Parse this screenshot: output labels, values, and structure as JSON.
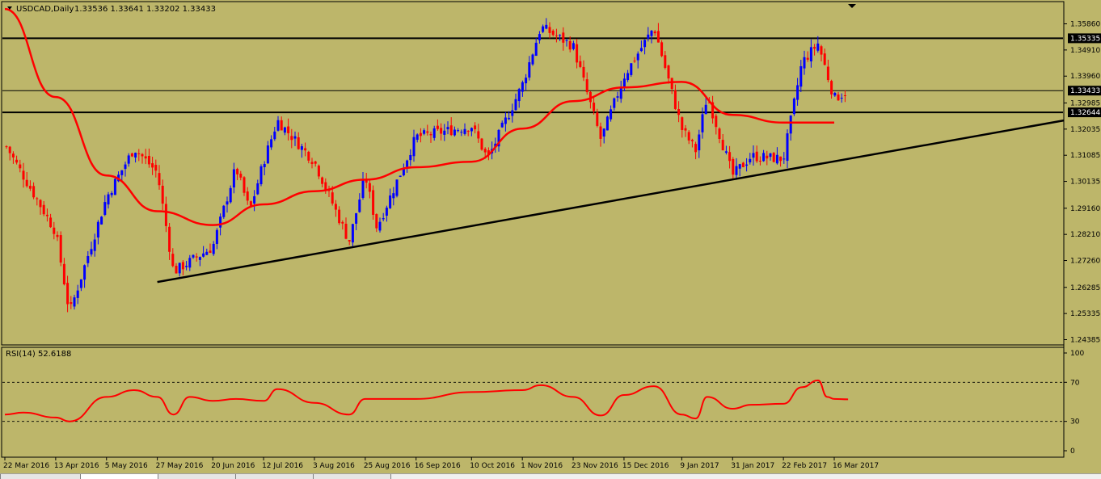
{
  "header": {
    "symbol": "USDCAD,Daily",
    "ohlc": "1.33536 1.33641 1.33202 1.33433"
  },
  "rsi_header": "RSI(14) 52.6188",
  "colors": {
    "background": "#bdb66a",
    "bull_candle": "#0000ff",
    "bear_candle": "#ff0000",
    "ma_line": "#ff0000",
    "rsi_line": "#ff0000",
    "trendline": "#000000",
    "price_tag_bg": "#000000",
    "price_tag_text": "#ffffff"
  },
  "chart_data": [
    {
      "type": "candlestick",
      "symbol": "USDCAD",
      "timeframe": "Daily",
      "y_ticks": [
        "1.35860",
        "1.34910",
        "1.33960",
        "1.32985",
        "1.32035",
        "1.31085",
        "1.30135",
        "1.29160",
        "1.28210",
        "1.27260",
        "1.26285",
        "1.25335",
        "1.24385"
      ],
      "ylim": [
        1.2438,
        1.3613
      ],
      "x_ticks": [
        "22 Mar 2016",
        "13 Apr 2016",
        "5 May 2016",
        "27 May 2016",
        "20 Jun 2016",
        "12 Jul 2016",
        "3 Aug 2016",
        "25 Aug 2016",
        "16 Sep 2016",
        "10 Oct 2016",
        "1 Nov 2016",
        "23 Nov 2016",
        "15 Dec 2016",
        "9 Jan 2017",
        "31 Jan 2017",
        "22 Feb 2017",
        "16 Mar 2017"
      ],
      "price_labels": [
        {
          "text": "1.35335",
          "price": 1.35335
        },
        {
          "text": "1.33433",
          "price": 1.33433
        },
        {
          "text": "1.32644",
          "price": 1.32644
        }
      ],
      "horizontal_lines": [
        1.35335,
        1.33433,
        1.32644
      ],
      "trendline": {
        "from": {
          "date": "27 May 2016",
          "price": 1.2648
        },
        "to": {
          "date": "right edge",
          "price": 1.3235
        }
      },
      "moving_average_path": [
        {
          "date": "22 Mar 2016",
          "price": 1.364
        },
        {
          "date": "13 Apr 2016",
          "price": 1.332
        },
        {
          "date": "5 May 2016",
          "price": 1.3035
        },
        {
          "date": "27 May 2016",
          "price": 1.2905
        },
        {
          "date": "20 Jun 2016",
          "price": 1.2855
        },
        {
          "date": "12 Jul 2016",
          "price": 1.293
        },
        {
          "date": "3 Aug 2016",
          "price": 1.2978
        },
        {
          "date": "25 Aug 2016",
          "price": 1.302
        },
        {
          "date": "16 Sep 2016",
          "price": 1.3065
        },
        {
          "date": "10 Oct 2016",
          "price": 1.3085
        },
        {
          "date": "1 Nov 2016",
          "price": 1.3205
        },
        {
          "date": "23 Nov 2016",
          "price": 1.3305
        },
        {
          "date": "15 Dec 2016",
          "price": 1.3355
        },
        {
          "date": "9 Jan 2017",
          "price": 1.3375
        },
        {
          "date": "31 Jan 2017",
          "price": 1.3255
        },
        {
          "date": "22 Feb 2017",
          "price": 1.3227
        },
        {
          "date": "16 Mar 2017",
          "price": 1.3227
        }
      ],
      "swing_path": [
        {
          "date": "22 Mar 2016",
          "price": 1.315
        },
        {
          "date": "13 Apr 2016",
          "price": 1.283
        },
        {
          "date": "19 Apr 2016",
          "price": 1.2535
        },
        {
          "date": "5 May 2016",
          "price": 1.2955
        },
        {
          "date": "17 May 2016",
          "price": 1.3135
        },
        {
          "date": "27 May 2016",
          "price": 1.3045
        },
        {
          "date": "3 Jun 2016",
          "price": 1.2685
        },
        {
          "date": "20 Jun 2016",
          "price": 1.2775
        },
        {
          "date": "30 Jun 2016",
          "price": 1.3065
        },
        {
          "date": "6 Jul 2016",
          "price": 1.2905
        },
        {
          "date": "12 Jul 2016",
          "price": 1.3085
        },
        {
          "date": "18 Jul 2016",
          "price": 1.3235
        },
        {
          "date": "3 Aug 2016",
          "price": 1.3085
        },
        {
          "date": "18 Aug 2016",
          "price": 1.2795
        },
        {
          "date": "25 Aug 2016",
          "price": 1.3035
        },
        {
          "date": "30 Aug 2016",
          "price": 1.2845
        },
        {
          "date": "16 Sep 2016",
          "price": 1.3175
        },
        {
          "date": "10 Oct 2016",
          "price": 1.3215
        },
        {
          "date": "17 Oct 2016",
          "price": 1.3095
        },
        {
          "date": "1 Nov 2016",
          "price": 1.3365
        },
        {
          "date": "9 Nov 2016",
          "price": 1.3575
        },
        {
          "date": "23 Nov 2016",
          "price": 1.3505
        },
        {
          "date": "5 Dec 2016",
          "price": 1.3165
        },
        {
          "date": "15 Dec 2016",
          "price": 1.3395
        },
        {
          "date": "28 Dec 2016",
          "price": 1.3575
        },
        {
          "date": "9 Jan 2017",
          "price": 1.3205
        },
        {
          "date": "15 Jan 2017",
          "price": 1.3125
        },
        {
          "date": "20 Jan 2017",
          "price": 1.3325
        },
        {
          "date": "31 Jan 2017",
          "price": 1.3035
        },
        {
          "date": "8 Feb 2017",
          "price": 1.3105
        },
        {
          "date": "22 Feb 2017",
          "price": 1.3095
        },
        {
          "date": "2 Mar 2017",
          "price": 1.3445
        },
        {
          "date": "9 Mar 2017",
          "price": 1.3515
        },
        {
          "date": "16 Mar 2017",
          "price": 1.3315
        },
        {
          "date": "22 Mar 2017",
          "price": 1.3343
        }
      ]
    },
    {
      "type": "line",
      "title": "RSI(14) 52.6188",
      "y_ticks": [
        "100",
        "70",
        "30",
        "0"
      ],
      "ylim": [
        0,
        100
      ],
      "levels": [
        70,
        30
      ],
      "points": [
        {
          "date": "22 Mar 2016",
          "value": 37
        },
        {
          "date": "30 Mar 2016",
          "value": 39
        },
        {
          "date": "13 Apr 2016",
          "value": 34
        },
        {
          "date": "19 Apr 2016",
          "value": 30
        },
        {
          "date": "5 May 2016",
          "value": 55
        },
        {
          "date": "17 May 2016",
          "value": 62
        },
        {
          "date": "27 May 2016",
          "value": 55
        },
        {
          "date": "3 Jun 2016",
          "value": 37
        },
        {
          "date": "10 Jun 2016",
          "value": 55
        },
        {
          "date": "20 Jun 2016",
          "value": 51
        },
        {
          "date": "30 Jun 2016",
          "value": 53
        },
        {
          "date": "12 Jul 2016",
          "value": 51
        },
        {
          "date": "18 Jul 2016",
          "value": 63
        },
        {
          "date": "3 Aug 2016",
          "value": 49
        },
        {
          "date": "18 Aug 2016",
          "value": 37
        },
        {
          "date": "25 Aug 2016",
          "value": 53
        },
        {
          "date": "16 Sep 2016",
          "value": 53
        },
        {
          "date": "10 Oct 2016",
          "value": 60
        },
        {
          "date": "1 Nov 2016",
          "value": 62
        },
        {
          "date": "9 Nov 2016",
          "value": 67
        },
        {
          "date": "23 Nov 2016",
          "value": 55
        },
        {
          "date": "5 Dec 2016",
          "value": 36
        },
        {
          "date": "15 Dec 2016",
          "value": 57
        },
        {
          "date": "28 Dec 2016",
          "value": 66
        },
        {
          "date": "9 Jan 2017",
          "value": 37
        },
        {
          "date": "15 Jan 2017",
          "value": 33
        },
        {
          "date": "20 Jan 2017",
          "value": 55
        },
        {
          "date": "31 Jan 2017",
          "value": 43
        },
        {
          "date": "8 Feb 2017",
          "value": 47
        },
        {
          "date": "22 Feb 2017",
          "value": 48
        },
        {
          "date": "2 Mar 2017",
          "value": 65
        },
        {
          "date": "9 Mar 2017",
          "value": 72
        },
        {
          "date": "13 Mar 2017",
          "value": 55
        },
        {
          "date": "16 Mar 2017",
          "value": 53
        },
        {
          "date": "22 Mar 2017",
          "value": 52.6
        }
      ]
    }
  ]
}
